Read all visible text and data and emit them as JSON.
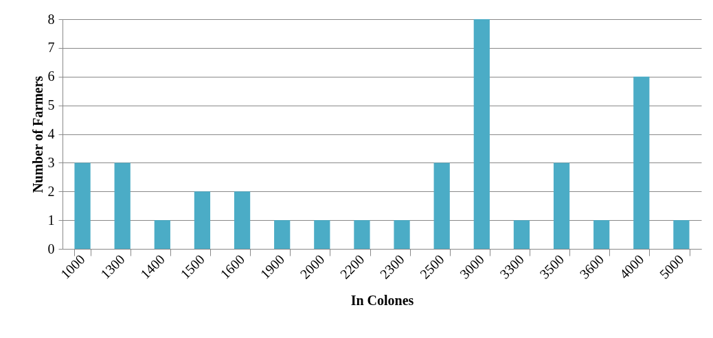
{
  "chart_data": {
    "type": "bar",
    "xlabel": "In Colones",
    "ylabel": "Number of Farmers",
    "categories": [
      "1000",
      "1300",
      "1400",
      "1500",
      "1600",
      "1900",
      "2000",
      "2200",
      "2300",
      "2500",
      "3000",
      "3300",
      "3500",
      "3600",
      "4000",
      "5000"
    ],
    "values": [
      3,
      3,
      1,
      2,
      2,
      1,
      1,
      1,
      1,
      3,
      8,
      1,
      3,
      1,
      6,
      1
    ],
    "color": "#4bacc6",
    "ylim": [
      0,
      8
    ],
    "yticks": [
      0,
      1,
      2,
      3,
      4,
      5,
      6,
      7,
      8
    ],
    "grid": "y"
  }
}
